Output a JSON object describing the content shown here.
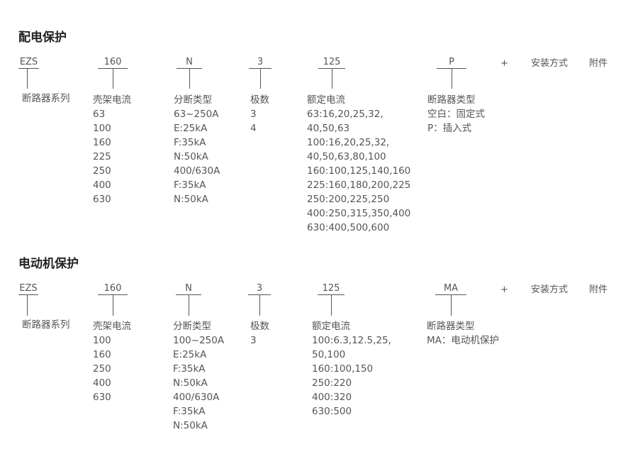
{
  "sections": [
    {
      "title": "配电保护",
      "codes": [
        "EZS",
        "160",
        "N",
        "3",
        "125",
        "P"
      ],
      "plus": "+",
      "install": "安装方式",
      "accessory": "附件",
      "columns": [
        {
          "header": "断路器系列",
          "items": []
        },
        {
          "header": "壳架电流",
          "items": [
            "63",
            "100",
            "160",
            "225",
            "250",
            "400",
            "630"
          ]
        },
        {
          "header": "分断类型",
          "items": [
            "63~250A",
            "E:25kA",
            "F:35kA",
            "N:50kA",
            "400/630A",
            "F:35kA",
            "N:50kA"
          ]
        },
        {
          "header": "极数",
          "items": [
            "3",
            "4"
          ]
        },
        {
          "header": "额定电流",
          "items": [
            "63:16,20,25,32,",
            "40,50,63",
            "100:16,20,25,32,",
            "40,50,63,80,100",
            "160:100,125,140,160",
            "225:160,180,200,225",
            "250:200,225,250",
            "400:250,315,350,400",
            "630:400,500,600"
          ]
        },
        {
          "header": "断路器类型",
          "items": [
            "空白：固定式",
            "P：插入式"
          ]
        }
      ]
    },
    {
      "title": "电动机保护",
      "codes": [
        "EZS",
        "160",
        "N",
        "3",
        "125",
        "MA"
      ],
      "plus": "+",
      "install": "安装方式",
      "accessory": "附件",
      "columns": [
        {
          "header": "断路器系列",
          "items": []
        },
        {
          "header": "壳架电流",
          "items": [
            "100",
            "160",
            "250",
            "400",
            "630"
          ]
        },
        {
          "header": "分断类型",
          "items": [
            "100~250A",
            "E:25kA",
            "F:35kA",
            "N:50kA",
            "400/630A",
            "F:35kA",
            "N:50kA"
          ]
        },
        {
          "header": "极数",
          "items": [
            "3"
          ]
        },
        {
          "header": "额定电流",
          "items": [
            "100:6.3,12.5,25,",
            "50,100",
            "160:100,150",
            "250:220",
            "400:320",
            "630:500"
          ]
        },
        {
          "header": "断路器类型",
          "items": [
            "MA：电动机保护"
          ]
        }
      ]
    }
  ]
}
